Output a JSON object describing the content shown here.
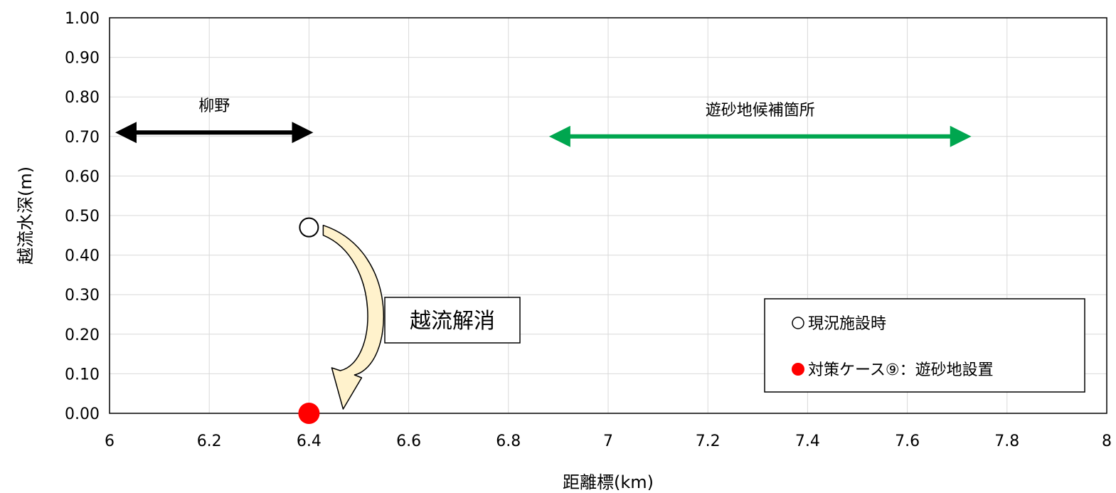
{
  "chart_data": {
    "type": "scatter",
    "xlabel": "距離標(km)",
    "ylabel": "越流水深(m)",
    "xlim": [
      6,
      8
    ],
    "ylim": [
      0,
      1
    ],
    "x_ticks": [
      "6",
      "6.2",
      "6.4",
      "6.6",
      "6.8",
      "7",
      "7.2",
      "7.4",
      "7.6",
      "7.8",
      "8"
    ],
    "y_ticks": [
      "0.00",
      "0.10",
      "0.20",
      "0.30",
      "0.40",
      "0.50",
      "0.60",
      "0.70",
      "0.80",
      "0.90",
      "1.00"
    ],
    "grid": true,
    "legend_position": "bottom-right",
    "series": [
      {
        "name": "現況施設時",
        "marker": "open-circle",
        "color": "#000000",
        "points": [
          {
            "x": 6.4,
            "y": 0.47
          }
        ]
      },
      {
        "name": "対策ケース⑨：遊砂地設置",
        "marker": "filled-circle",
        "color": "#ff0000",
        "points": [
          {
            "x": 6.4,
            "y": 0.0
          }
        ]
      }
    ],
    "ranges": [
      {
        "label": "柳野",
        "x_start": 6.02,
        "x_end": 6.4,
        "y": 0.71,
        "color": "#000000"
      },
      {
        "label": "遊砂地候補箇所",
        "x_start": 6.89,
        "x_end": 7.72,
        "y": 0.7,
        "color": "#00a64f"
      }
    ],
    "annotations": [
      {
        "text": "越流解消",
        "from": {
          "x": 6.4,
          "y": 0.47
        },
        "to": {
          "x": 6.4,
          "y": 0.0
        },
        "arrow_color": "#fff2cc"
      }
    ]
  }
}
